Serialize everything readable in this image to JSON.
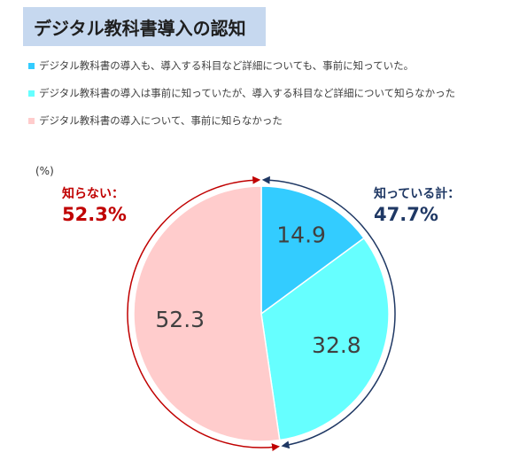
{
  "title": "デジタル教科書導入の認知",
  "colors": {
    "title_bg": "#c6d8ef",
    "slice_known_all": "#33ccff",
    "slice_known_partial": "#66ffff",
    "slice_unknown": "#ffcccc",
    "arc_known": "#1f3864",
    "arc_unknown": "#c00000"
  },
  "unit_label": "(%)",
  "callouts": {
    "unknown": {
      "label": "知らない：",
      "value": "52.3%"
    },
    "known": {
      "label": "知っている計：",
      "value": "47.7%"
    }
  },
  "chart_data": {
    "type": "pie",
    "title": "デジタル教科書導入の認知",
    "unit": "(%)",
    "slices": [
      {
        "name": "デジタル教科書の導入も、導入する科目など詳細についても、事前に知っていた。",
        "value": 14.9,
        "label": "14.9",
        "color": "#33ccff"
      },
      {
        "name": "デジタル教科書の導入は事前に知っていたが、導入する科目など詳細について知らなかった",
        "value": 32.8,
        "label": "32.8",
        "color": "#66ffff"
      },
      {
        "name": "デジタル教科書の導入について、事前に知らなかった",
        "value": 52.3,
        "label": "52.3",
        "color": "#ffcccc"
      }
    ],
    "legend_position": "top",
    "groups": [
      {
        "label": "知っている計：",
        "value": "47.7%",
        "slices": [
          0,
          1
        ]
      },
      {
        "label": "知らない：",
        "value": "52.3%",
        "slices": [
          2
        ]
      }
    ]
  }
}
